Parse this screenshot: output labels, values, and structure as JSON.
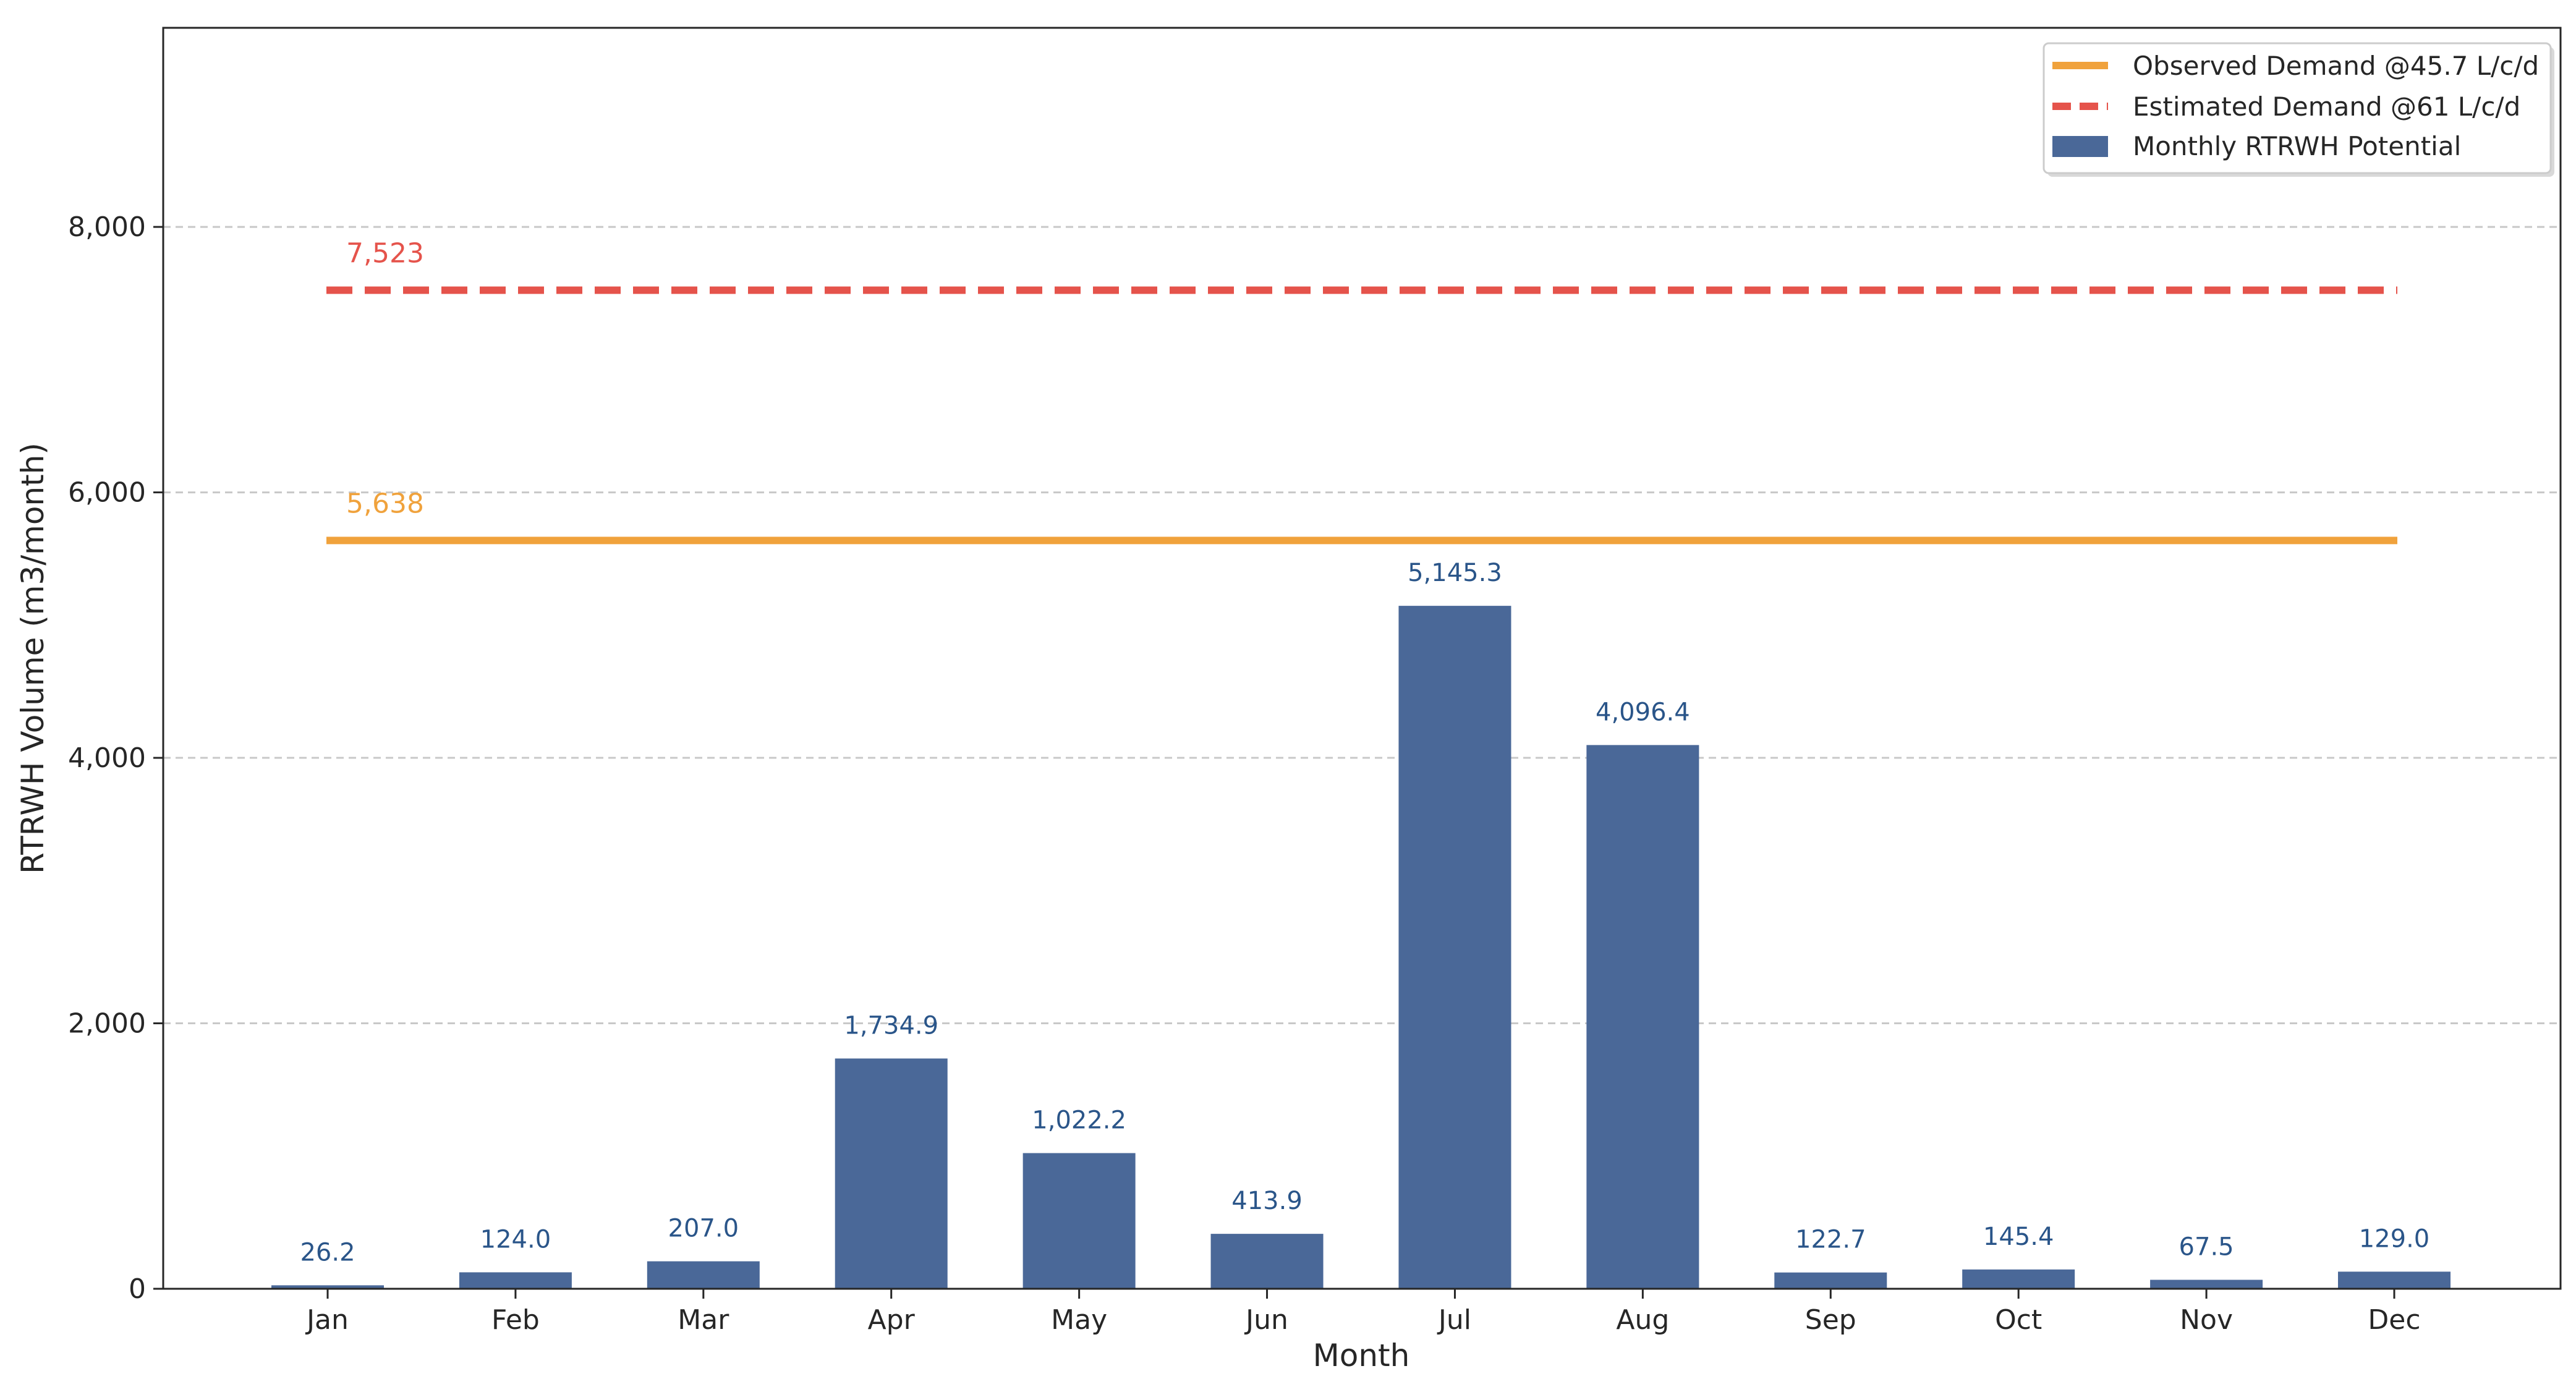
{
  "chart_data": {
    "type": "bar",
    "title": "",
    "xlabel": "Month",
    "ylabel": "RTRWH Volume (m3/month)",
    "ylim": [
      0,
      9500
    ],
    "yticks": [
      {
        "value": 0,
        "label": "0"
      },
      {
        "value": 2000,
        "label": "2,000"
      },
      {
        "value": 4000,
        "label": "4,000"
      },
      {
        "value": 6000,
        "label": "6,000"
      },
      {
        "value": 8000,
        "label": "8,000"
      }
    ],
    "grid": "horizontal dashed",
    "legend_position": "top-right",
    "categories": [
      "Jan",
      "Feb",
      "Mar",
      "Apr",
      "May",
      "Jun",
      "Jul",
      "Aug",
      "Sep",
      "Oct",
      "Nov",
      "Dec"
    ],
    "series": [
      {
        "name": "Monthly RTRWH Potential",
        "type": "bar",
        "color": "#4a6898",
        "values": [
          26.2,
          124.0,
          207.0,
          1734.9,
          1022.2,
          413.9,
          5145.3,
          4096.4,
          122.7,
          145.4,
          67.5,
          129.0
        ],
        "labels": [
          "26.2",
          "124.0",
          "207.0",
          "1,734.9",
          "1,022.2",
          "413.9",
          "5,145.3",
          "4,096.4",
          "122.7",
          "145.4",
          "67.5",
          "129.0"
        ]
      }
    ],
    "reference_lines": [
      {
        "name": "Observed Demand @45.7 L/c/d",
        "value": 5638,
        "label": "5,638",
        "color": "#f0a23c",
        "style": "solid"
      },
      {
        "name": "Estimated Demand @61 L/c/d",
        "value": 7523,
        "label": "7,523",
        "color": "#e5534b",
        "style": "dashed"
      }
    ],
    "legend": [
      {
        "label": "Observed Demand @45.7 L/c/d",
        "kind": "solid-line",
        "color": "#f0a23c"
      },
      {
        "label": "Estimated Demand @61 L/c/d",
        "kind": "dashed-line",
        "color": "#e5534b"
      },
      {
        "label": "Monthly RTRWH Potential",
        "kind": "patch",
        "color": "#4a6898"
      }
    ]
  }
}
